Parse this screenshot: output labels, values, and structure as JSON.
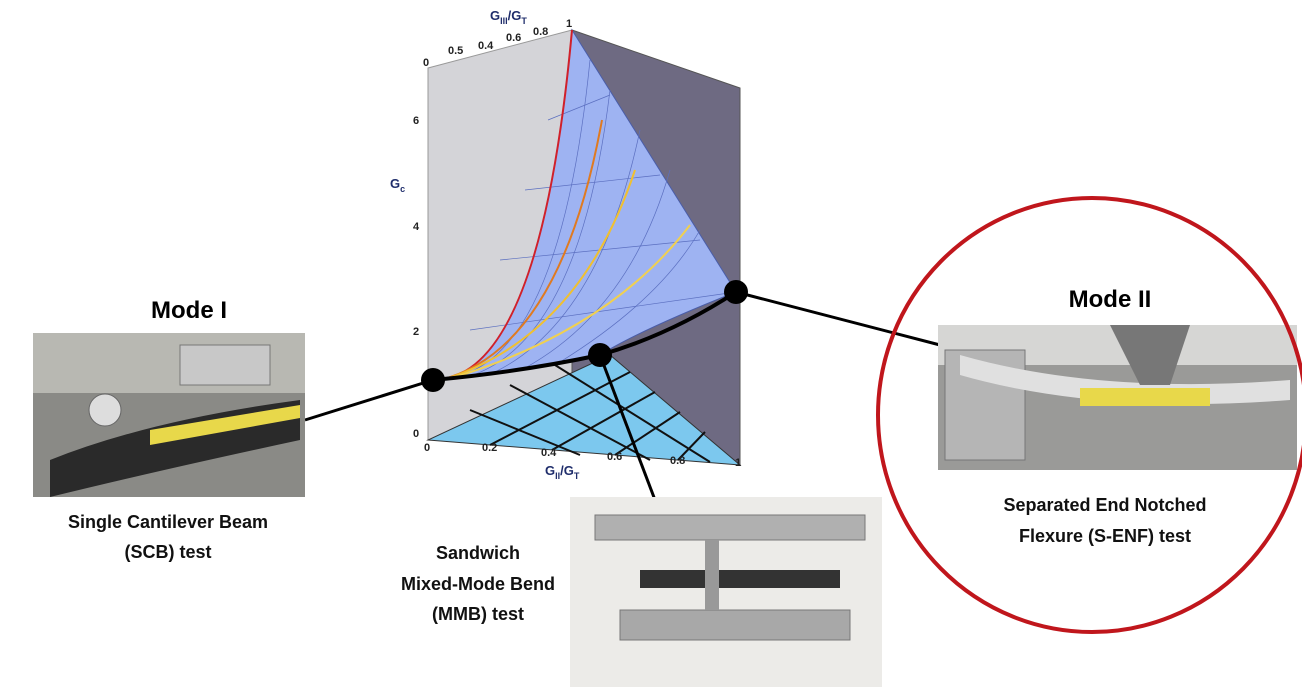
{
  "plot": {
    "top_axis": {
      "label": [
        "G",
        "III",
        "/G",
        "T"
      ],
      "ticks": [
        "0",
        "0.5",
        "0.4",
        "0.6",
        "0.8",
        "1"
      ]
    },
    "vertical_axis": {
      "label": [
        "G",
        "c"
      ],
      "ticks": [
        "6",
        "4",
        "2",
        "0"
      ]
    },
    "bottom_axis": {
      "label": [
        "G",
        "II",
        "/G",
        "T"
      ],
      "ticks": [
        "0",
        "0.2",
        "0.4",
        "0.6",
        "0.8",
        "1"
      ]
    }
  },
  "mode_i": {
    "title": "Mode I",
    "caption": [
      "Single Cantilever Beam",
      "(SCB)  test"
    ]
  },
  "mmb": {
    "caption": [
      "Sandwich",
      "Mixed-Mode Bend",
      "(MMB) test"
    ]
  },
  "mode_ii": {
    "title": "Mode II",
    "caption": [
      "Separated End Notched",
      "Flexure (S-ENF) test"
    ]
  }
}
